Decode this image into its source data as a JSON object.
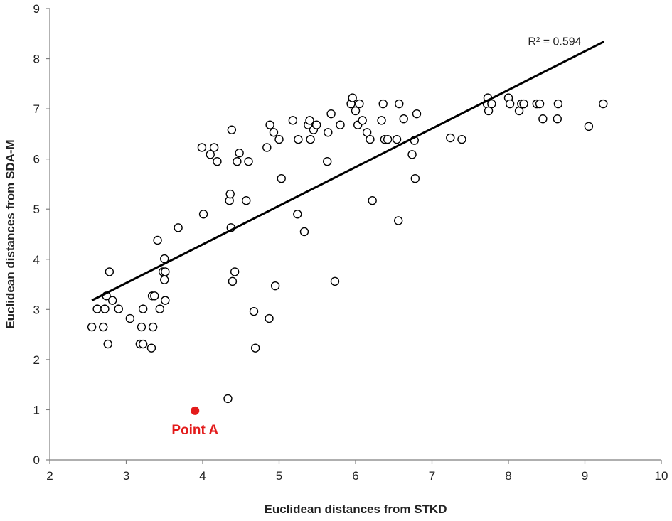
{
  "chart_data": {
    "type": "scatter",
    "xlabel": "Euclidean distances from STKD",
    "ylabel": "Euclidean distances from SDA-M",
    "xlim": [
      2,
      10
    ],
    "ylim": [
      0,
      9
    ],
    "xticks": [
      2,
      3,
      4,
      5,
      6,
      7,
      8,
      9,
      10
    ],
    "yticks": [
      0,
      1,
      2,
      3,
      4,
      5,
      6,
      7,
      8,
      9
    ],
    "grid": false,
    "marker": "open-circle",
    "trendline": {
      "type": "linear",
      "from": [
        2.55,
        3.18
      ],
      "to": [
        9.25,
        8.34
      ],
      "label": "R² = 0.594"
    },
    "highlight": {
      "label": "Point A",
      "x": 3.9,
      "y": 0.98,
      "color": "#e31b1b"
    },
    "points": [
      [
        2.55,
        2.65
      ],
      [
        2.62,
        3.01
      ],
      [
        2.7,
        2.65
      ],
      [
        2.72,
        3.01
      ],
      [
        2.74,
        3.27
      ],
      [
        2.76,
        2.31
      ],
      [
        2.78,
        3.75
      ],
      [
        2.82,
        3.18
      ],
      [
        2.9,
        3.01
      ],
      [
        3.05,
        2.82
      ],
      [
        3.18,
        2.31
      ],
      [
        3.2,
        2.65
      ],
      [
        3.22,
        2.31
      ],
      [
        3.22,
        3.01
      ],
      [
        3.33,
        2.23
      ],
      [
        3.34,
        3.27
      ],
      [
        3.35,
        2.65
      ],
      [
        3.37,
        3.27
      ],
      [
        3.41,
        4.38
      ],
      [
        3.44,
        3.01
      ],
      [
        3.48,
        3.75
      ],
      [
        3.5,
        4.01
      ],
      [
        3.5,
        3.59
      ],
      [
        3.51,
        3.75
      ],
      [
        3.51,
        3.18
      ],
      [
        3.68,
        4.63
      ],
      [
        3.99,
        6.23
      ],
      [
        4.01,
        4.9
      ],
      [
        4.1,
        6.09
      ],
      [
        4.15,
        6.23
      ],
      [
        4.19,
        5.95
      ],
      [
        4.33,
        1.22
      ],
      [
        4.35,
        5.17
      ],
      [
        4.36,
        5.3
      ],
      [
        4.37,
        4.63
      ],
      [
        4.38,
        6.58
      ],
      [
        4.39,
        3.56
      ],
      [
        4.42,
        3.75
      ],
      [
        4.45,
        5.95
      ],
      [
        4.48,
        6.12
      ],
      [
        4.57,
        5.17
      ],
      [
        4.6,
        5.95
      ],
      [
        4.67,
        2.96
      ],
      [
        4.69,
        2.23
      ],
      [
        4.84,
        6.23
      ],
      [
        4.87,
        2.82
      ],
      [
        4.88,
        6.68
      ],
      [
        4.93,
        6.53
      ],
      [
        4.95,
        3.47
      ],
      [
        5.0,
        6.39
      ],
      [
        5.03,
        5.61
      ],
      [
        5.18,
        6.77
      ],
      [
        5.24,
        4.9
      ],
      [
        5.25,
        6.39
      ],
      [
        5.33,
        4.55
      ],
      [
        5.38,
        6.68
      ],
      [
        5.4,
        6.77
      ],
      [
        5.41,
        6.39
      ],
      [
        5.45,
        6.58
      ],
      [
        5.49,
        6.68
      ],
      [
        5.63,
        5.95
      ],
      [
        5.64,
        6.53
      ],
      [
        5.68,
        6.9
      ],
      [
        5.73,
        3.56
      ],
      [
        5.8,
        6.68
      ],
      [
        5.94,
        7.1
      ],
      [
        5.96,
        7.22
      ],
      [
        6.0,
        6.96
      ],
      [
        6.03,
        6.68
      ],
      [
        6.05,
        7.1
      ],
      [
        6.09,
        6.77
      ],
      [
        6.15,
        6.53
      ],
      [
        6.19,
        6.39
      ],
      [
        6.22,
        5.17
      ],
      [
        6.34,
        6.77
      ],
      [
        6.36,
        7.1
      ],
      [
        6.38,
        6.39
      ],
      [
        6.42,
        6.39
      ],
      [
        6.54,
        6.39
      ],
      [
        6.56,
        4.77
      ],
      [
        6.57,
        7.1
      ],
      [
        6.63,
        6.8
      ],
      [
        6.74,
        6.09
      ],
      [
        6.77,
        6.37
      ],
      [
        6.78,
        5.61
      ],
      [
        6.8,
        6.9
      ],
      [
        7.24,
        6.42
      ],
      [
        7.39,
        6.39
      ],
      [
        7.72,
        7.1
      ],
      [
        7.73,
        7.22
      ],
      [
        7.74,
        6.96
      ],
      [
        7.78,
        7.1
      ],
      [
        8.0,
        7.22
      ],
      [
        8.02,
        7.1
      ],
      [
        8.14,
        6.96
      ],
      [
        8.17,
        7.1
      ],
      [
        8.2,
        7.1
      ],
      [
        8.37,
        7.1
      ],
      [
        8.41,
        7.1
      ],
      [
        8.45,
        6.8
      ],
      [
        8.64,
        6.8
      ],
      [
        8.65,
        7.1
      ],
      [
        9.05,
        6.65
      ],
      [
        9.24,
        7.1
      ]
    ]
  }
}
